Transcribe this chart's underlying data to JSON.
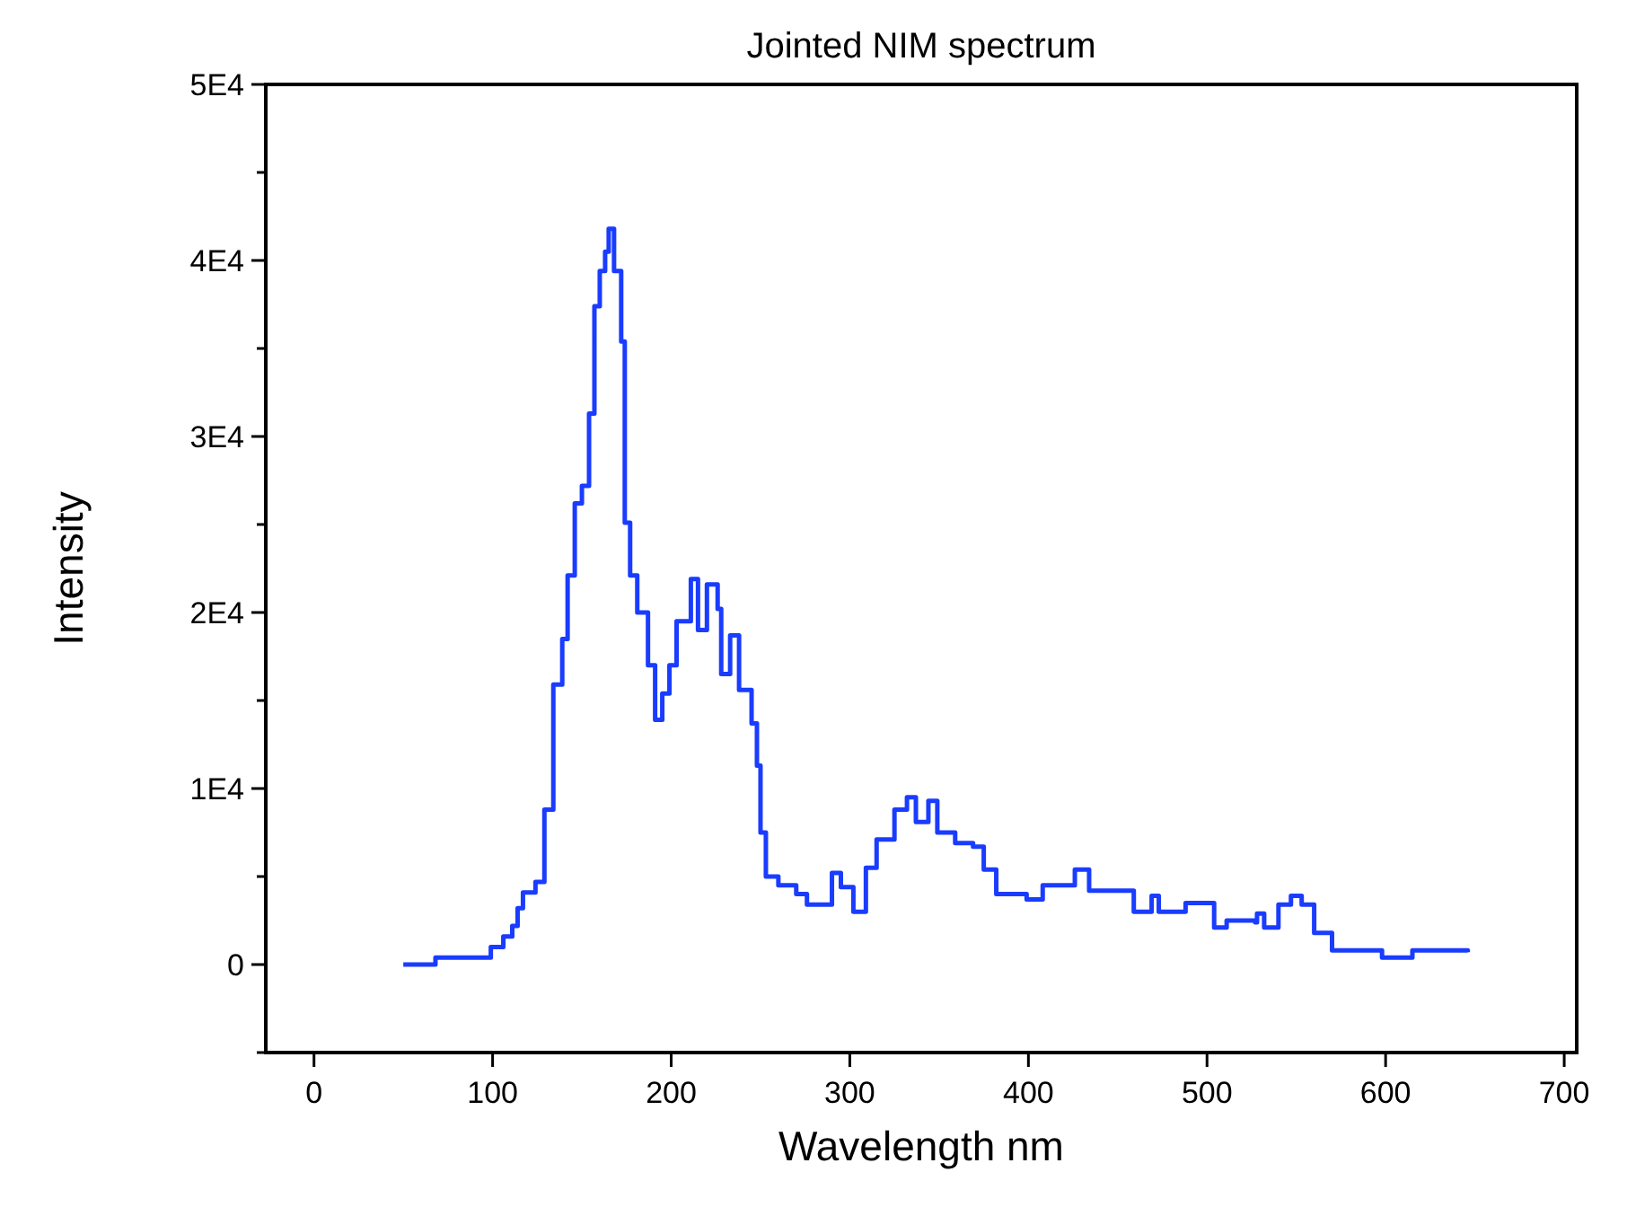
{
  "chart_data": {
    "type": "step",
    "title": "Jointed NIM spectrum",
    "xlabel": "Wavelength nm",
    "ylabel": "Intensity",
    "xlim": [
      -27,
      707
    ],
    "ylim": [
      -5000,
      50000
    ],
    "xticks": [
      0,
      100,
      200,
      300,
      400,
      500,
      600,
      700
    ],
    "yticks": [
      {
        "value": -5000,
        "label": null
      },
      {
        "value": 0,
        "label": "0"
      },
      {
        "value": 5000,
        "label": null
      },
      {
        "value": 10000,
        "label": "1E4"
      },
      {
        "value": 15000,
        "label": null
      },
      {
        "value": 20000,
        "label": "2E4"
      },
      {
        "value": 25000,
        "label": null
      },
      {
        "value": 30000,
        "label": "3E4"
      },
      {
        "value": 35000,
        "label": null
      },
      {
        "value": 40000,
        "label": "4E4"
      },
      {
        "value": 45000,
        "label": null
      },
      {
        "value": 50000,
        "label": "5E4"
      }
    ],
    "grid": false,
    "marker": "none",
    "line_style": "solid",
    "series": [
      {
        "color": "#1a3cff",
        "x": [
          50,
          67,
          68,
          92,
          99,
          106,
          111,
          114,
          117,
          124,
          129,
          134,
          139,
          142,
          146,
          150,
          154,
          157,
          160,
          163,
          165,
          168,
          172,
          174,
          177,
          181,
          187,
          191,
          195,
          199,
          203,
          211,
          215,
          220,
          226,
          228,
          233,
          238,
          245,
          248,
          250,
          253,
          260,
          270,
          276,
          290,
          295,
          302,
          309,
          315,
          325,
          332,
          337,
          344,
          349,
          359,
          369,
          375,
          382,
          399,
          408,
          426,
          434,
          451,
          459,
          469,
          473,
          488,
          504,
          511,
          527,
          528,
          532,
          540,
          547,
          553,
          560,
          570,
          597,
          598,
          613,
          615,
          646
        ],
        "values": [
          0,
          0,
          400,
          400,
          1000,
          1600,
          2200,
          3200,
          4100,
          4700,
          8800,
          15900,
          18500,
          22100,
          26200,
          27200,
          31300,
          37400,
          39400,
          40500,
          41800,
          39400,
          35400,
          25100,
          22100,
          20000,
          17000,
          13900,
          15400,
          17000,
          19500,
          21900,
          19000,
          21600,
          20200,
          16500,
          18700,
          15600,
          13700,
          11300,
          7500,
          5000,
          4500,
          4000,
          3400,
          5200,
          4400,
          3000,
          5500,
          7100,
          8800,
          9500,
          8100,
          9300,
          7500,
          6900,
          6700,
          5400,
          4000,
          3700,
          4500,
          5400,
          4200,
          4200,
          3000,
          3900,
          3000,
          3500,
          2100,
          2500,
          2400,
          2900,
          2100,
          3400,
          3900,
          3400,
          1800,
          800,
          800,
          400,
          400,
          800,
          700
        ]
      }
    ]
  }
}
